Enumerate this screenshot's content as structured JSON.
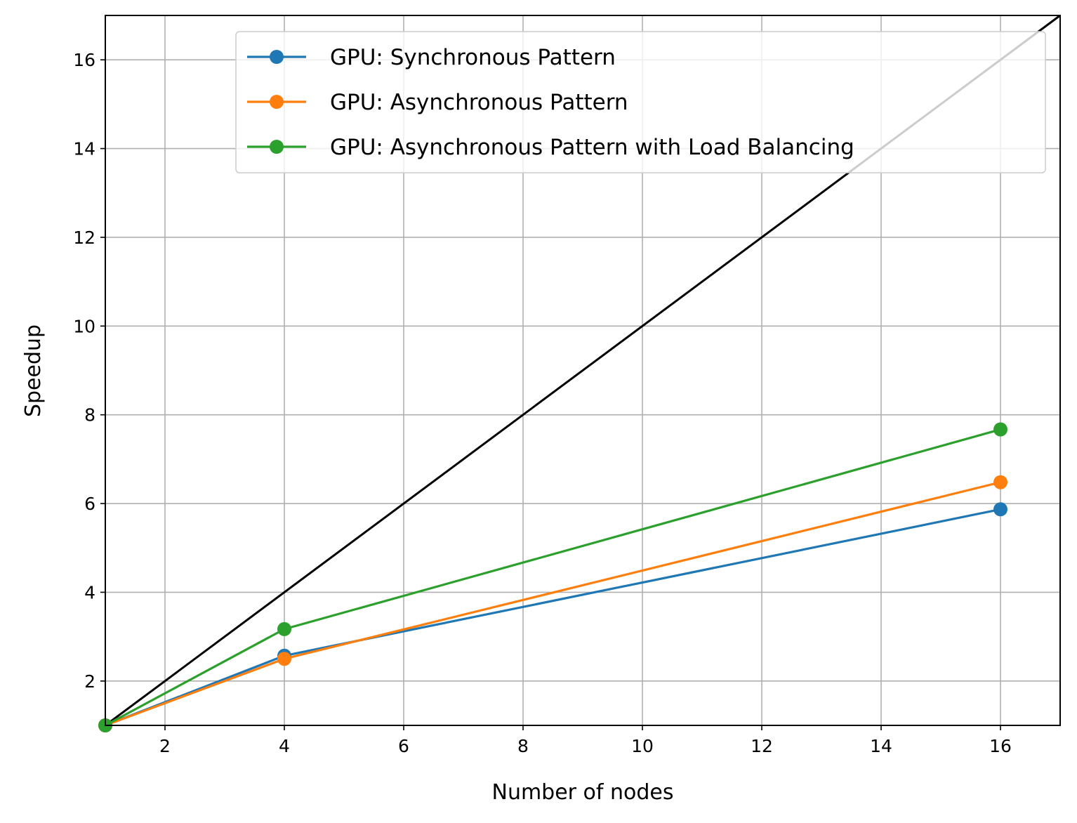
{
  "chart_data": {
    "type": "line",
    "title": "",
    "xlabel": "Number of nodes",
    "ylabel": "Speedup",
    "xlim": [
      1,
      17
    ],
    "ylim": [
      1,
      17
    ],
    "xticks": [
      2,
      4,
      6,
      8,
      10,
      12,
      14,
      16
    ],
    "yticks": [
      2,
      4,
      6,
      8,
      10,
      12,
      14,
      16
    ],
    "grid": true,
    "legend_position": "top-right",
    "reference_line": {
      "x": [
        1,
        17
      ],
      "y": [
        1,
        17
      ],
      "color": "#000000"
    },
    "series": [
      {
        "name": "GPU: Synchronous Pattern",
        "color": "#1f77b4",
        "x": [
          1,
          4,
          16
        ],
        "y": [
          1.0,
          2.57,
          5.87
        ]
      },
      {
        "name": "GPU: Asynchronous Pattern",
        "color": "#ff7f0e",
        "x": [
          1,
          4,
          16
        ],
        "y": [
          1.0,
          2.5,
          6.48
        ]
      },
      {
        "name": "GPU: Asynchronous Pattern with Load Balancing",
        "color": "#2ca02c",
        "x": [
          1,
          4,
          16
        ],
        "y": [
          1.0,
          3.17,
          7.67
        ]
      }
    ]
  }
}
